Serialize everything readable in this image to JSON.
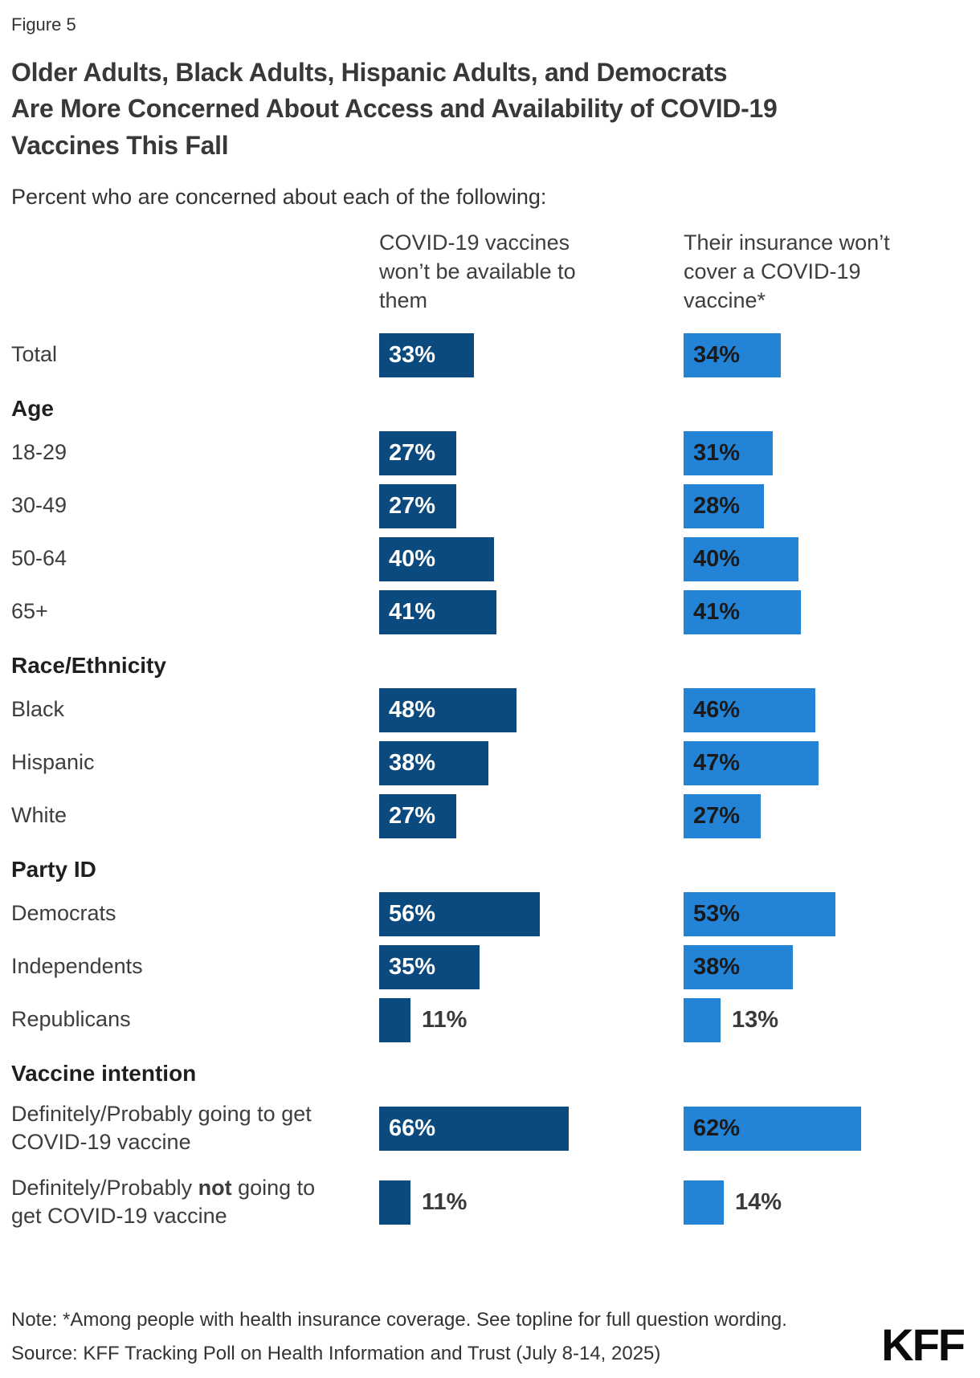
{
  "figure_label": "Figure 5",
  "title": "Older Adults, Black Adults, Hispanic Adults, and Democrats Are More Concerned About Access and Availability of COVID-19 Vaccines This Fall",
  "title_lines": [
    "Older Adults, Black Adults, Hispanic Adults, and Democrats",
    "Are More Concerned About Access and Availability of COVID-19",
    "Vaccines This Fall"
  ],
  "subtitle": "Percent who are concerned about each of the following:",
  "note": "Note: *Among people with health insurance coverage. See topline for full question wording.",
  "source": "Source: KFF Tracking Poll on Health Information and Trust (July 8-14, 2025)",
  "logo_text": "KFF",
  "chart_data": {
    "type": "bar",
    "orientation": "horizontal",
    "value_unit": "%",
    "value_axis_range": [
      0,
      70
    ],
    "inside_label_min_value": 20,
    "grid": false,
    "legend_position": "column-headers",
    "categories": [
      "Total",
      "18-29",
      "30-49",
      "50-64",
      "65+",
      "Black",
      "Hispanic",
      "White",
      "Democrats",
      "Independents",
      "Republicans",
      "Definitely/Probably going to get COVID-19 vaccine",
      "Definitely/Probably not going to get COVID-19 vaccine"
    ],
    "sections": [
      "Age",
      "Race/Ethnicity",
      "Party ID",
      "Vaccine intention"
    ],
    "series": [
      {
        "name": "COVID-19 vaccines won’t be available to them",
        "color": "#0B4A7E",
        "inside_label_color": "#FFFFFF",
        "values": [
          33,
          27,
          27,
          40,
          41,
          48,
          38,
          27,
          56,
          35,
          11,
          66,
          11
        ]
      },
      {
        "name": "Their insurance won’t cover a COVID-19 vaccine*",
        "color": "#2383D6",
        "inside_label_color": "#1A1A1A",
        "values": [
          34,
          31,
          28,
          40,
          41,
          46,
          47,
          27,
          53,
          38,
          13,
          62,
          14
        ]
      }
    ],
    "rows": [
      {
        "kind": "bar",
        "label": "Total",
        "values": [
          33,
          34
        ]
      },
      {
        "kind": "section",
        "label": "Age"
      },
      {
        "kind": "bar",
        "label": "18-29",
        "values": [
          27,
          31
        ]
      },
      {
        "kind": "bar",
        "label": "30-49",
        "values": [
          27,
          28
        ]
      },
      {
        "kind": "bar",
        "label": "50-64",
        "values": [
          40,
          40
        ]
      },
      {
        "kind": "bar",
        "label": "65+",
        "values": [
          41,
          41
        ]
      },
      {
        "kind": "section",
        "label": "Race/Ethnicity"
      },
      {
        "kind": "bar",
        "label": "Black",
        "values": [
          48,
          46
        ]
      },
      {
        "kind": "bar",
        "label": "Hispanic",
        "values": [
          38,
          47
        ]
      },
      {
        "kind": "bar",
        "label": "White",
        "values": [
          27,
          27
        ]
      },
      {
        "kind": "section",
        "label": "Party ID"
      },
      {
        "kind": "bar",
        "label": "Democrats",
        "values": [
          56,
          53
        ]
      },
      {
        "kind": "bar",
        "label": "Independents",
        "values": [
          35,
          38
        ]
      },
      {
        "kind": "bar",
        "label": "Republicans",
        "values": [
          11,
          13
        ]
      },
      {
        "kind": "section",
        "label": "Vaccine intention"
      },
      {
        "kind": "bar",
        "label": "Definitely/Probably going to get COVID-19 vaccine",
        "values": [
          66,
          62
        ]
      },
      {
        "kind": "bar",
        "label_parts": [
          {
            "text": "Definitely/Probably "
          },
          {
            "text": "not",
            "bold": true
          },
          {
            "text": " going to get COVID-19 vaccine"
          }
        ],
        "values": [
          11,
          14
        ]
      }
    ]
  }
}
